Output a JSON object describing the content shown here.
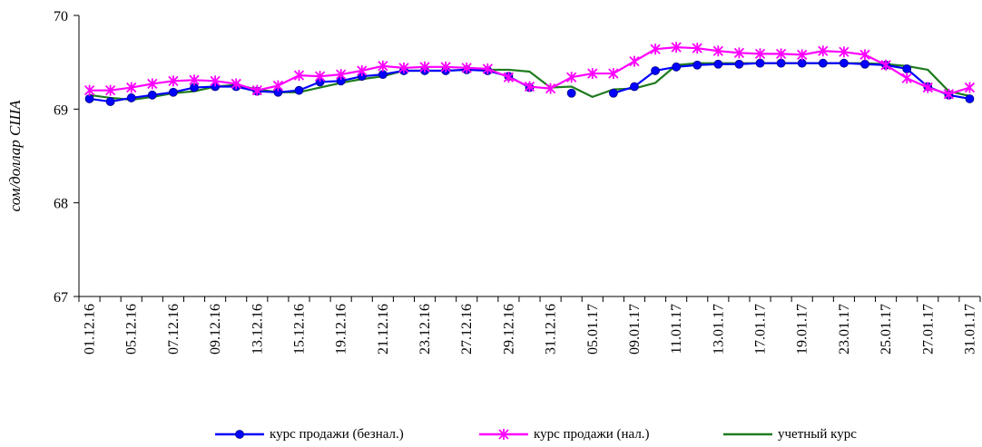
{
  "chart_data": {
    "type": "line",
    "ylabel": "сом/доллар США",
    "xlabel": "",
    "ylim": [
      67,
      70
    ],
    "yticks": [
      "67",
      "68",
      "69",
      "70"
    ],
    "ytick_values": [
      67,
      68,
      69,
      70
    ],
    "x": [
      "01.12.16",
      "02.12.16",
      "05.12.16",
      "06.12.16",
      "07.12.16",
      "08.12.16",
      "09.12.16",
      "12.12.16",
      "13.12.16",
      "14.12.16",
      "15.12.16",
      "16.12.16",
      "19.12.16",
      "20.12.16",
      "21.12.16",
      "22.12.16",
      "23.12.16",
      "26.12.16",
      "27.12.16",
      "28.12.16",
      "29.12.16",
      "30.12.16",
      "31.12.16",
      "04.01.17",
      "05.01.17",
      "06.01.17",
      "09.01.17",
      "10.01.17",
      "11.01.17",
      "12.01.17",
      "13.01.17",
      "16.01.17",
      "17.01.17",
      "18.01.17",
      "19.01.17",
      "20.01.17",
      "23.01.17",
      "24.01.17",
      "25.01.17",
      "26.01.17",
      "27.01.17",
      "30.01.17",
      "31.01.17"
    ],
    "x_tick_labels": [
      "01.12.16",
      "05.12.16",
      "07.12.16",
      "09.12.16",
      "13.12.16",
      "15.12.16",
      "19.12.16",
      "21.12.16",
      "23.12.16",
      "27.12.16",
      "29.12.16",
      "31.12.16",
      "05.01.17",
      "09.01.17",
      "11.01.17",
      "13.01.17",
      "17.01.17",
      "19.01.17",
      "23.01.17",
      "25.01.17",
      "27.01.17",
      "31.01.17"
    ],
    "series": [
      {
        "name": "курс продажи (безнал.)",
        "color": "#0000FF",
        "marker": "circle",
        "values": [
          69.11,
          69.08,
          69.12,
          69.15,
          69.18,
          69.23,
          69.24,
          69.24,
          69.19,
          69.18,
          69.2,
          69.29,
          69.3,
          69.35,
          69.37,
          69.41,
          69.41,
          69.41,
          69.42,
          69.41,
          69.35,
          69.23,
          null,
          69.17,
          null,
          69.17,
          69.24,
          69.41,
          69.45,
          69.47,
          69.48,
          69.48,
          69.49,
          69.49,
          69.49,
          69.49,
          69.49,
          69.48,
          69.47,
          69.43,
          69.24,
          69.15,
          69.11
        ]
      },
      {
        "name": "курс продажи (нал.)",
        "color": "#FF00FF",
        "marker": "star",
        "values": [
          69.2,
          69.2,
          69.23,
          69.27,
          69.3,
          69.31,
          69.3,
          69.27,
          69.2,
          69.25,
          69.36,
          69.35,
          69.37,
          69.41,
          69.46,
          69.44,
          69.45,
          69.45,
          69.44,
          69.43,
          69.34,
          69.24,
          69.22,
          69.34,
          69.38,
          69.38,
          69.51,
          69.64,
          69.66,
          69.65,
          69.62,
          69.6,
          69.59,
          69.59,
          69.58,
          69.62,
          69.61,
          69.58,
          69.47,
          69.33,
          69.23,
          69.16,
          69.23
        ]
      },
      {
        "name": "учетный курс",
        "color": "#1E7B1E",
        "marker": "none",
        "values": [
          69.15,
          69.12,
          69.1,
          69.13,
          69.17,
          69.19,
          69.24,
          69.26,
          69.21,
          69.18,
          69.18,
          69.23,
          69.28,
          69.32,
          69.35,
          69.41,
          69.41,
          69.41,
          69.42,
          69.42,
          69.42,
          69.4,
          69.23,
          69.24,
          69.13,
          69.21,
          69.22,
          69.28,
          69.47,
          69.49,
          69.49,
          69.49,
          69.49,
          69.49,
          69.49,
          69.49,
          69.49,
          69.49,
          69.48,
          69.46,
          69.42,
          69.19,
          69.14
        ]
      }
    ],
    "legend_position": "bottom",
    "grid": false
  }
}
